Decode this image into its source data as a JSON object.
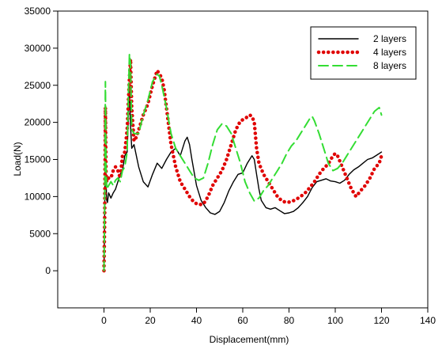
{
  "chart_data": {
    "type": "line",
    "title": "",
    "xlabel": "Displacement(mm)",
    "ylabel": "Load(N)",
    "xlim": [
      -20,
      140
    ],
    "ylim": [
      -5000,
      35000
    ],
    "xticks": [
      0,
      20,
      40,
      60,
      80,
      100,
      120,
      140
    ],
    "yticks": [
      0,
      5000,
      10000,
      15000,
      20000,
      25000,
      30000,
      35000
    ],
    "grid": false,
    "legend_position": "top-right",
    "series": [
      {
        "name": "2 layers",
        "color": "#000000",
        "style": "solid",
        "x": [
          0,
          0.3,
          0.6,
          0.9,
          1.2,
          1.5,
          2,
          3,
          4,
          5,
          6,
          7,
          8,
          9,
          10,
          10.5,
          11,
          11.5,
          12,
          13,
          15,
          17,
          19,
          21,
          23,
          25,
          27,
          29,
          31,
          33,
          35,
          36,
          37,
          38,
          40,
          42,
          44,
          46,
          48,
          50,
          52,
          54,
          56,
          58,
          60,
          62,
          64,
          65,
          66,
          67,
          68,
          70,
          72,
          74,
          76,
          78,
          80,
          82,
          84,
          86,
          88,
          90,
          92,
          94,
          96,
          98,
          100,
          102,
          104,
          106,
          108,
          110,
          112,
          114,
          116,
          118,
          120
        ],
        "y": [
          0,
          8000,
          21000,
          12000,
          9500,
          9200,
          10500,
          9800,
          10500,
          11000,
          12000,
          13000,
          13500,
          15500,
          16000,
          20000,
          25000,
          19500,
          16500,
          17000,
          14000,
          12000,
          11300,
          13000,
          14500,
          13800,
          15000,
          16000,
          16500,
          15500,
          17500,
          18000,
          17000,
          15000,
          11500,
          9500,
          8500,
          7800,
          7600,
          8000,
          9200,
          10800,
          12000,
          13000,
          13200,
          14500,
          15500,
          15000,
          13000,
          11000,
          9500,
          8500,
          8300,
          8500,
          8100,
          7700,
          7800,
          8000,
          8500,
          9200,
          10000,
          11200,
          12000,
          12200,
          12400,
          12100,
          12000,
          11800,
          12200,
          13000,
          13600,
          14000,
          14500,
          15000,
          15200,
          15600,
          16000
        ]
      },
      {
        "name": "4 layers",
        "color": "#e00000",
        "style": "dotted",
        "x": [
          0,
          0.3,
          0.6,
          0.9,
          1.2,
          2,
          3,
          4,
          5,
          6,
          7,
          8,
          9,
          10,
          11,
          11.5,
          12,
          13,
          14,
          15,
          17,
          19,
          21,
          22,
          23,
          24,
          25,
          26,
          27,
          29,
          31,
          33,
          35,
          37,
          39,
          41,
          43,
          45,
          47,
          49,
          51,
          53,
          55,
          57,
          59,
          61,
          63,
          64,
          65,
          66,
          67,
          69,
          71,
          73,
          75,
          77,
          79,
          81,
          83,
          85,
          87,
          89,
          91,
          93,
          95,
          97,
          99,
          100,
          101,
          103,
          105,
          107,
          109,
          111,
          113,
          115,
          117,
          119,
          120
        ],
        "y": [
          0,
          7000,
          22000,
          13000,
          12000,
          12500,
          12500,
          13500,
          14000,
          13500,
          12500,
          15500,
          16000,
          19000,
          26000,
          28500,
          22000,
          17500,
          18000,
          19000,
          21000,
          22500,
          25000,
          26000,
          27000,
          26500,
          26000,
          24500,
          22000,
          17000,
          14000,
          12000,
          11000,
          10000,
          9200,
          8900,
          9000,
          10000,
          11500,
          12500,
          13500,
          15000,
          17000,
          19000,
          20200,
          20500,
          21000,
          20800,
          20000,
          16500,
          14500,
          13000,
          12000,
          11000,
          10000,
          9400,
          9200,
          9300,
          9600,
          10000,
          10500,
          11200,
          12000,
          13000,
          13800,
          14400,
          15500,
          15800,
          15500,
          14000,
          12500,
          11000,
          10000,
          10800,
          11500,
          12500,
          13800,
          14500,
          15500
        ]
      },
      {
        "name": "8 layers",
        "color": "#33dd33",
        "style": "dashed",
        "x": [
          0,
          0.3,
          0.6,
          0.9,
          1.2,
          2,
          3,
          4,
          5,
          6,
          7,
          8,
          9,
          10,
          10.5,
          11,
          11.5,
          12,
          13,
          15,
          17,
          19,
          21,
          23,
          24,
          25,
          27,
          29,
          31,
          33,
          35,
          37,
          39,
          41,
          43,
          45,
          47,
          49,
          51,
          53,
          55,
          57,
          59,
          61,
          63,
          65,
          67,
          69,
          71,
          73,
          75,
          77,
          79,
          81,
          83,
          85,
          87,
          89,
          90,
          91,
          93,
          95,
          97,
          99,
          101,
          103,
          105,
          107,
          109,
          111,
          113,
          115,
          117,
          119,
          120
        ],
        "y": [
          0,
          9000,
          25500,
          14000,
          11000,
          11500,
          12000,
          11500,
          12200,
          12500,
          12000,
          13500,
          14000,
          16000,
          23000,
          29200,
          28000,
          19000,
          18500,
          18500,
          21000,
          23000,
          25500,
          26500,
          26200,
          25000,
          22000,
          18500,
          16500,
          15500,
          14500,
          13500,
          12500,
          12200,
          12500,
          14500,
          17000,
          19000,
          19800,
          19500,
          18500,
          16500,
          14500,
          12000,
          10500,
          9400,
          9800,
          10800,
          11500,
          12500,
          13500,
          14500,
          15800,
          16800,
          17500,
          18500,
          19500,
          20500,
          20800,
          20200,
          18500,
          16500,
          14500,
          13500,
          13800,
          14500,
          15500,
          16500,
          17500,
          18500,
          19500,
          20500,
          21500,
          22000,
          21000
        ]
      }
    ]
  }
}
